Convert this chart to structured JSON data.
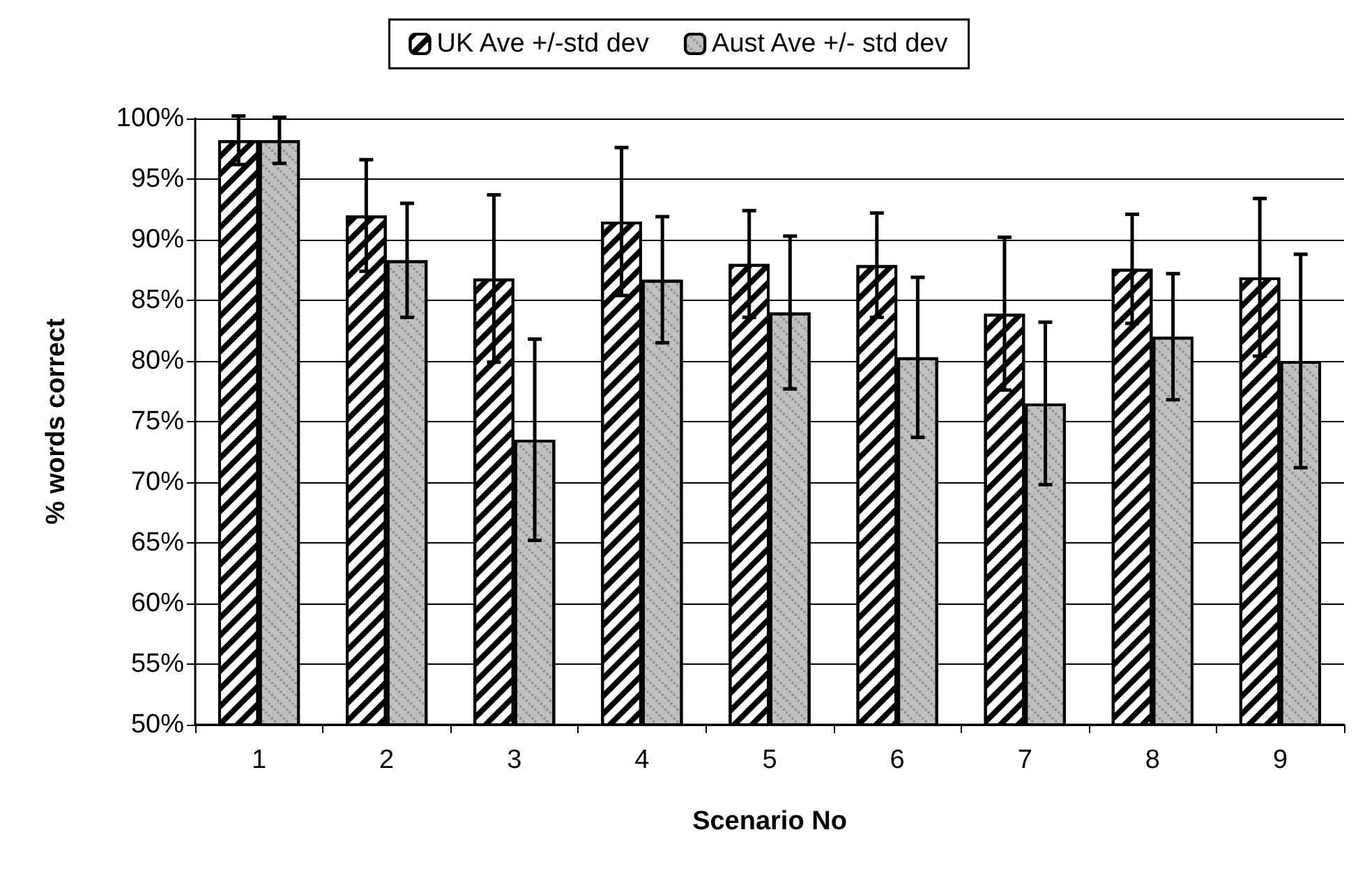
{
  "chart_data": {
    "type": "bar",
    "xlabel": "Scenario No",
    "ylabel": "% words correct",
    "categories": [
      "1",
      "2",
      "3",
      "4",
      "5",
      "6",
      "7",
      "8",
      "9"
    ],
    "series": [
      {
        "name": "UK Ave +/-std dev",
        "color": "#ffffff",
        "values": [
          98.2,
          92.0,
          86.8,
          91.5,
          88.0,
          87.9,
          83.9,
          87.6,
          86.9
        ],
        "errors": [
          2.0,
          4.6,
          6.9,
          6.1,
          4.4,
          4.3,
          6.3,
          4.5,
          6.5
        ]
      },
      {
        "name": "Aust Ave +/- std dev",
        "color": "#c0c0c0",
        "values": [
          98.2,
          88.3,
          73.5,
          86.7,
          84.0,
          80.3,
          76.5,
          82.0,
          80.0
        ],
        "errors": [
          1.9,
          4.7,
          8.3,
          5.2,
          6.3,
          6.6,
          6.7,
          5.2,
          8.8
        ]
      }
    ],
    "ylim": [
      50,
      100
    ],
    "yticks": [
      {
        "value": 50,
        "label": "50%"
      },
      {
        "value": 55,
        "label": "55%"
      },
      {
        "value": 60,
        "label": "60%"
      },
      {
        "value": 65,
        "label": "65%"
      },
      {
        "value": 70,
        "label": "70%"
      },
      {
        "value": 75,
        "label": "75%"
      },
      {
        "value": 80,
        "label": "80%"
      },
      {
        "value": 85,
        "label": "85%"
      },
      {
        "value": 90,
        "label": "90%"
      },
      {
        "value": 95,
        "label": "95%"
      },
      {
        "value": 100,
        "label": "100%"
      }
    ],
    "grid": "y",
    "legend": "top"
  }
}
